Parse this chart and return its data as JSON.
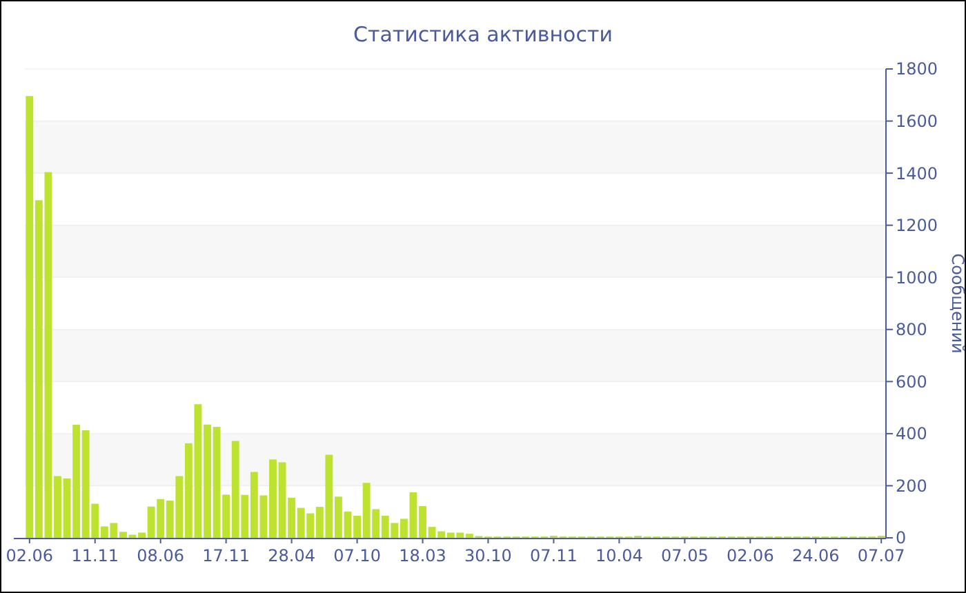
{
  "chart_data": {
    "type": "bar",
    "title": "Статистика активности",
    "ylabel": "Сообщений",
    "color": "#bde22f",
    "categories": [
      "02.06",
      null,
      null,
      null,
      null,
      null,
      null,
      "11.11",
      null,
      null,
      null,
      null,
      null,
      null,
      "08.06",
      null,
      null,
      null,
      null,
      null,
      null,
      "17.11",
      null,
      null,
      null,
      null,
      null,
      null,
      "28.04",
      null,
      null,
      null,
      null,
      null,
      null,
      "07.10",
      null,
      null,
      null,
      null,
      null,
      null,
      "18.03",
      null,
      null,
      null,
      null,
      null,
      null,
      "30.10",
      null,
      null,
      null,
      null,
      null,
      null,
      "07.11",
      null,
      null,
      null,
      null,
      null,
      null,
      "10.04",
      null,
      null,
      null,
      null,
      null,
      null,
      "07.05",
      null,
      null,
      null,
      null,
      null,
      null,
      "02.06",
      null,
      null,
      null,
      null,
      null,
      null,
      "24.06",
      null,
      null,
      null,
      null,
      null,
      null,
      "07.07"
    ],
    "values": [
      1696,
      1296,
      1404,
      237,
      228,
      434,
      413,
      131,
      44,
      57,
      23,
      12,
      20,
      120,
      149,
      143,
      237,
      363,
      513,
      435,
      426,
      166,
      372,
      165,
      253,
      163,
      301,
      290,
      154,
      115,
      94,
      119,
      319,
      158,
      101,
      85,
      211,
      110,
      85,
      57,
      73,
      175,
      122,
      42,
      25,
      20,
      20,
      16,
      7,
      5,
      5,
      5,
      5,
      5,
      5,
      5,
      8,
      5,
      5,
      5,
      5,
      5,
      5,
      5,
      5,
      8,
      5,
      5,
      5,
      5,
      5,
      5,
      5,
      5,
      5,
      5,
      5,
      5,
      5,
      5,
      5,
      5,
      5,
      5,
      5,
      5,
      5,
      5,
      5,
      5,
      5,
      8
    ],
    "ylim": [
      0,
      1800
    ],
    "yticks": [
      0,
      200,
      400,
      600,
      800,
      1000,
      1200,
      1400,
      1600,
      1800
    ],
    "grid": "y"
  }
}
